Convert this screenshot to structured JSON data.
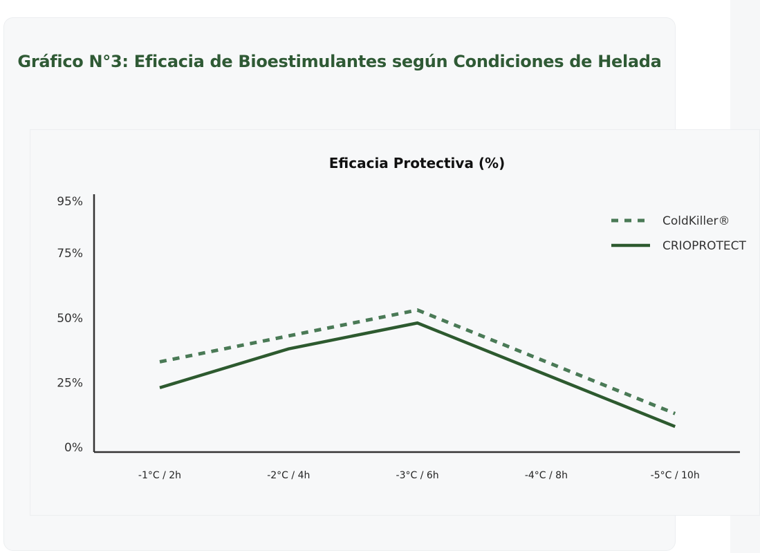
{
  "page": {
    "title": "Gráfico N°3: Eficacia de Bioestimulantes según Condiciones de Helada"
  },
  "colors": {
    "title": "#2f5a35",
    "series_dashed": "#4a7a56",
    "series_solid": "#2d5a2f",
    "axis": "#333333"
  },
  "chart_data": {
    "type": "line",
    "title": "Eficacia Protectiva (%)",
    "xlabel": "",
    "ylabel": "",
    "categories": [
      "-1°C / 2h",
      "-2°C / 4h",
      "-3°C / 6h",
      "-4°C / 8h",
      "-5°C / 10h"
    ],
    "yticks": [
      0,
      25,
      50,
      75,
      95
    ],
    "ytick_labels": [
      "0%",
      "25%",
      "50%",
      "75%",
      "95%"
    ],
    "ylim": [
      0,
      95
    ],
    "grid": false,
    "legend_position": "top-right",
    "series": [
      {
        "name": "ColdKiller®",
        "style": "dashed",
        "values": [
          33,
          43,
          53,
          33,
          13
        ]
      },
      {
        "name": "CRIOPROTECT",
        "style": "solid",
        "values": [
          23,
          38,
          48,
          28,
          8
        ]
      }
    ]
  }
}
